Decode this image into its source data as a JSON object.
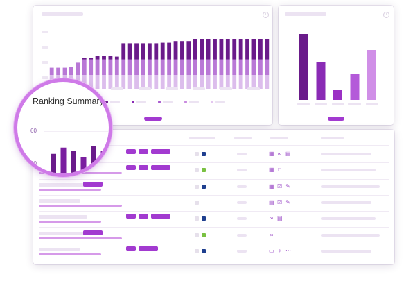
{
  "colors": {
    "accent": "#a23ad0",
    "bar_dark": "#6a1b8a",
    "bar_mid": "#8a2bb5",
    "bar_light": "#c98be0",
    "ring": "#cf7ae8",
    "status_green": "#7ac142",
    "status_navy": "#1f3f8f"
  },
  "info_icons": [
    "info-icon",
    "info-icon"
  ],
  "main_chart": {
    "type": "bar",
    "stacked": true,
    "columns": 34,
    "tiers": [
      {
        "level": 0.25,
        "color": "#dcbdec"
      },
      {
        "level": 0.53,
        "color": "#b978d6"
      },
      {
        "level": 1.0,
        "color": "#6a1b8a"
      }
    ],
    "values": [
      0.38,
      0.38,
      0.38,
      0.4,
      0.47,
      0.55,
      0.55,
      0.6,
      0.6,
      0.6,
      0.58,
      0.82,
      0.82,
      0.82,
      0.82,
      0.82,
      0.82,
      0.83,
      0.83,
      0.86,
      0.86,
      0.86,
      0.9,
      0.9,
      0.9,
      0.9,
      0.9,
      0.9,
      0.9,
      0.9,
      0.9,
      0.9,
      0.9,
      0.9
    ],
    "legend_colors": [
      "#6a1b8a",
      "#8a2bb5",
      "#a95bd0",
      "#c98be0",
      "#e4c6f0"
    ]
  },
  "side_chart": {
    "type": "bar",
    "values": [
      0.95,
      0.54,
      0.14,
      0.38,
      0.72
    ],
    "colors": [
      "#6a1b8a",
      "#8a2bb5",
      "#9b30c4",
      "#b45ad9",
      "#d08fe7"
    ]
  },
  "magnifier": {
    "title": "Ranking Summary",
    "yticks": [
      "60",
      "40"
    ],
    "chart_data": {
      "type": "bar",
      "ylim": [
        35,
        75
      ],
      "yticks": [
        60,
        40
      ],
      "values": [
        52,
        56,
        54,
        50,
        57,
        54
      ],
      "colors": [
        "#6a1b8a",
        "#7a1f9f",
        "#6a1b8a",
        "#7a1f9f",
        "#6a1b8a",
        "#7a1f9f"
      ]
    }
  },
  "table": {
    "rows": [
      {
        "tags": 3,
        "status": [
          "gray",
          "navy"
        ],
        "icons": [
          "grid-icon",
          "link-icon",
          "doc-icon"
        ]
      },
      {
        "tags": 3,
        "status": [
          "gray",
          "green"
        ],
        "icons": [
          "grid-icon",
          "lock-icon"
        ]
      },
      {
        "tags": 1,
        "status": [
          "gray",
          "navy"
        ],
        "icons": [
          "grid-icon",
          "check-icon",
          "pencil-icon"
        ]
      },
      {
        "tags": 0,
        "status": [
          "gray"
        ],
        "icons": [
          "doc-icon",
          "check-icon",
          "pencil-icon"
        ]
      },
      {
        "tags": 3,
        "status": [
          "gray",
          "navy"
        ],
        "icons": [
          "link-icon",
          "doc-icon"
        ]
      },
      {
        "tags": 1,
        "status": [
          "gray",
          "green"
        ],
        "icons": [
          "link-icon",
          "dots-icon"
        ]
      },
      {
        "tags": 2,
        "status": [
          "gray",
          "navy"
        ],
        "icons": [
          "bag-icon",
          "user-icon",
          "dots-icon"
        ]
      }
    ]
  }
}
